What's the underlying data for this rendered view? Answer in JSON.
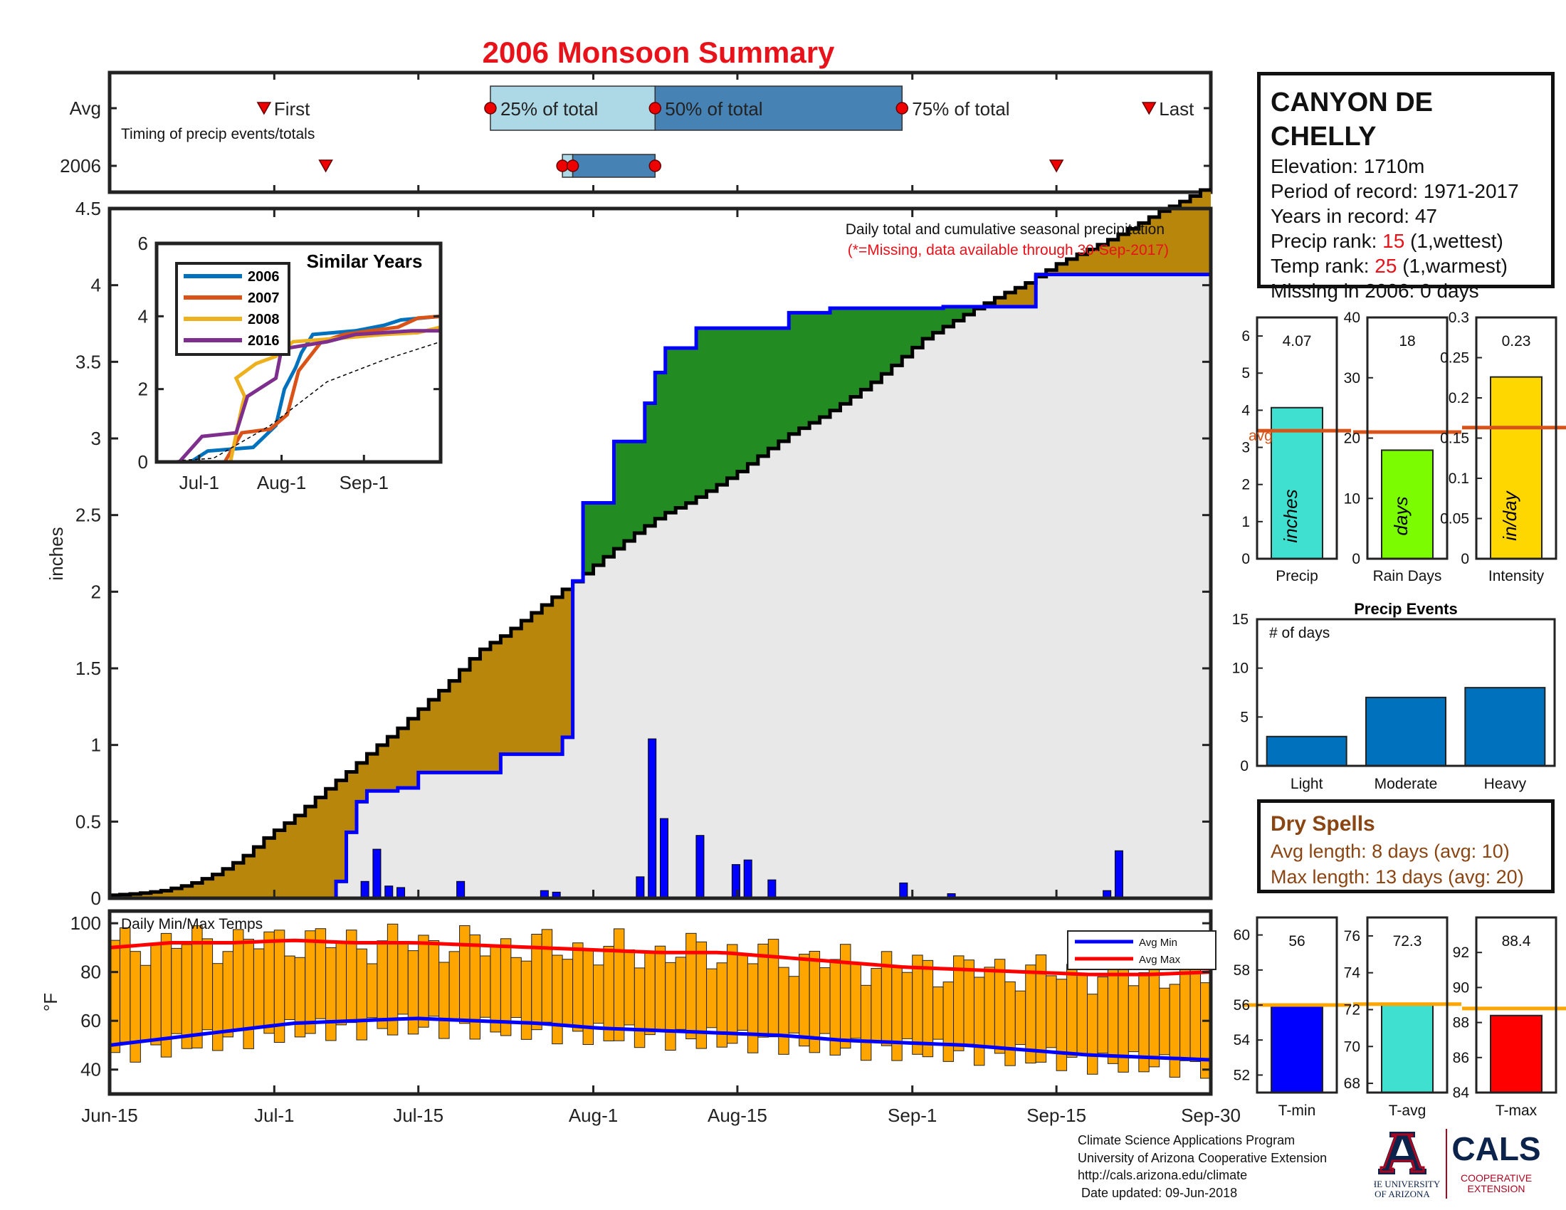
{
  "title": "2006 Monsoon Summary",
  "station": {
    "name": "CANYON DE CHELLY",
    "elevation_label": "Elevation: 1710m",
    "period_label": "Period of record: 1971-2017",
    "years_label": "Years in record: 47",
    "precip_rank_prefix": "Precip rank: ",
    "precip_rank": "15",
    "precip_rank_suffix": " (1,wettest)",
    "temp_rank_prefix": "Temp rank: ",
    "temp_rank": "25",
    "temp_rank_suffix": " (1,warmest)",
    "missing_label": "Missing in 2006: 0 days"
  },
  "dry_spells": {
    "heading": "Dry Spells",
    "avg_line": "Avg length: 8 days (avg: 10)",
    "max_line": "Max length: 13 days (avg: 20)"
  },
  "credit": {
    "line1": "Climate Science Applications Program",
    "line2": "University of Arizona Cooperative Extension",
    "line3": "http://cals.arizona.edu/climate",
    "line4": " Date updated: 09-Jun-2018"
  },
  "logos": {
    "ua_line1": "THE UNIVERSITY",
    "ua_line2": "OF ARIZONA",
    "cals": "CALS",
    "cals_line1": "COOPERATIVE",
    "cals_line2": "EXTENSION",
    "ua_color": "#0c234b",
    "red_color": "#ab0520"
  },
  "colors": {
    "title": "#e8121a",
    "green": "#228b22",
    "brown": "#b8860b",
    "grey_fill": "#e8e8e8",
    "blue": "#0000ff",
    "orange": "#ffa500",
    "red": "#ff0000"
  },
  "chart_data": [
    {
      "id": "timing",
      "type": "timeline",
      "rows": [
        "Avg",
        "2006"
      ],
      "note": "Timing of precip events/totals",
      "labels": {
        "first": "First",
        "p25": "25% of total",
        "p50": "50% of total",
        "p75": "75% of total",
        "last": "Last"
      },
      "avg": {
        "first": "2006-06-30",
        "p25": "2006-07-22",
        "p50": "2006-08-07",
        "p75": "2006-08-31",
        "last": "2006-09-24"
      },
      "y2006": {
        "first": "2006-07-06",
        "p25": "2006-07-29",
        "p50": "2006-07-30",
        "p75": "2006-08-07",
        "last": "2006-09-15"
      }
    },
    {
      "id": "cumulative",
      "type": "area",
      "title": "Daily total and cumulative seasonal precipitation",
      "subtitle": "(*=Missing, data available through 30-Sep-2017)",
      "ylabel": "inches",
      "ylim": [
        0,
        4.5
      ],
      "yticks": [
        0,
        0.5,
        1,
        1.5,
        2,
        2.5,
        3,
        3.5,
        4,
        4.5
      ],
      "xlim": [
        "2006-06-15",
        "2006-09-30"
      ],
      "xticks": [
        {
          "date": "2006-06-15",
          "label": "Jun-15"
        },
        {
          "date": "2006-07-01",
          "label": "Jul-1"
        },
        {
          "date": "2006-07-15",
          "label": "Jul-15"
        },
        {
          "date": "2006-08-01",
          "label": "Aug-1"
        },
        {
          "date": "2006-08-15",
          "label": "Aug-15"
        },
        {
          "date": "2006-09-01",
          "label": "Sep-1"
        },
        {
          "date": "2006-09-15",
          "label": "Sep-15"
        },
        {
          "date": "2006-09-30",
          "label": "Sep-30"
        }
      ],
      "avg_cumulative": [
        [
          0,
          0.02
        ],
        [
          5,
          0.03
        ],
        [
          10,
          0.05
        ],
        [
          15,
          0.09
        ],
        [
          20,
          0.16
        ],
        [
          24,
          0.24
        ],
        [
          26,
          0.29
        ],
        [
          30,
          0.41
        ],
        [
          35,
          0.53
        ],
        [
          40,
          0.68
        ],
        [
          45,
          0.82
        ],
        [
          50,
          0.97
        ],
        [
          55,
          1.11
        ],
        [
          60,
          1.27
        ],
        [
          64,
          1.39
        ],
        [
          67,
          1.5
        ],
        [
          70,
          1.61
        ],
        [
          75,
          1.72
        ],
        [
          80,
          1.85
        ],
        [
          85,
          1.98
        ],
        [
          90,
          2.11
        ],
        [
          95,
          2.25
        ],
        [
          100,
          2.38
        ],
        [
          105,
          2.5
        ],
        [
          110,
          2.58
        ],
        [
          115,
          2.68
        ],
        [
          120,
          2.79
        ],
        [
          125,
          2.92
        ],
        [
          130,
          3.04
        ],
        [
          135,
          3.13
        ],
        [
          140,
          3.24
        ],
        [
          145,
          3.36
        ],
        [
          150,
          3.5
        ],
        [
          155,
          3.65
        ],
        [
          160,
          3.75
        ],
        [
          165,
          3.85
        ],
        [
          170,
          3.94
        ],
        [
          175,
          4.02
        ],
        [
          180,
          4.13
        ],
        [
          185,
          4.21
        ],
        [
          190,
          4.29
        ],
        [
          195,
          4.38
        ],
        [
          200,
          4.48
        ],
        [
          205,
          4.56
        ],
        [
          210,
          4.66
        ]
      ],
      "cumulative_2006": [
        [
          0,
          0
        ],
        [
          21,
          0
        ],
        [
          22,
          0.11
        ],
        [
          23,
          0.43
        ],
        [
          24,
          0.63
        ],
        [
          25,
          0.7
        ],
        [
          28,
          0.72
        ],
        [
          30,
          0.82
        ],
        [
          37,
          0.82
        ],
        [
          38,
          0.94
        ],
        [
          40,
          0.94
        ],
        [
          44,
          1.05
        ],
        [
          45,
          2.07
        ],
        [
          46,
          2.58
        ],
        [
          49,
          2.98
        ],
        [
          52,
          3.23
        ],
        [
          53,
          3.43
        ],
        [
          54,
          3.59
        ],
        [
          57,
          3.72
        ],
        [
          66,
          3.82
        ],
        [
          70,
          3.85
        ],
        [
          81,
          3.86
        ],
        [
          90,
          4.07
        ],
        [
          92,
          4.07
        ]
      ],
      "daily_2006": [
        [
          21,
          0.11
        ],
        [
          22,
          0.32
        ],
        [
          23,
          0.08
        ],
        [
          24,
          0.07
        ],
        [
          29,
          0.11
        ],
        [
          36,
          0.05
        ],
        [
          37,
          0.04
        ],
        [
          44,
          0.14
        ],
        [
          45,
          1.04
        ],
        [
          46,
          0.52
        ],
        [
          49,
          0.41
        ],
        [
          52,
          0.22
        ],
        [
          53,
          0.25
        ],
        [
          55,
          0.12
        ],
        [
          66,
          0.1
        ],
        [
          70,
          0.03
        ],
        [
          83,
          0.05
        ],
        [
          84,
          0.31
        ]
      ]
    },
    {
      "id": "similar_years",
      "type": "line",
      "title": "Similar Years",
      "yticks": [
        0,
        2,
        4,
        6
      ],
      "xticks": [
        "Jul-1",
        "Aug-1",
        "Sep-1"
      ],
      "series": [
        {
          "name": "2006",
          "color": "#0072bd"
        },
        {
          "name": "2007",
          "color": "#d95319"
        },
        {
          "name": "2008",
          "color": "#edb120"
        },
        {
          "name": "2016",
          "color": "#7e2f8e"
        }
      ]
    },
    {
      "id": "temps",
      "type": "bar",
      "title": "Daily Min/Max Temps",
      "ylabel": "°F",
      "ylim": [
        30,
        105
      ],
      "yticks": [
        40,
        60,
        80,
        100
      ],
      "legend": [
        "Avg Min",
        "Avg Max"
      ],
      "avg_min": [
        [
          0,
          50
        ],
        [
          10,
          53
        ],
        [
          20,
          56
        ],
        [
          30,
          59
        ],
        [
          40,
          60
        ],
        [
          50,
          61
        ],
        [
          60,
          60
        ],
        [
          70,
          59
        ],
        [
          80,
          57
        ],
        [
          90,
          56
        ],
        [
          100,
          55
        ],
        [
          110,
          54
        ],
        [
          120,
          52
        ],
        [
          130,
          51
        ],
        [
          140,
          50
        ],
        [
          150,
          48
        ],
        [
          160,
          46
        ],
        [
          170,
          45
        ],
        [
          180,
          44
        ]
      ],
      "avg_max": [
        [
          0,
          90
        ],
        [
          10,
          92
        ],
        [
          20,
          92
        ],
        [
          30,
          93
        ],
        [
          40,
          92
        ],
        [
          50,
          92
        ],
        [
          60,
          91
        ],
        [
          70,
          90
        ],
        [
          80,
          89
        ],
        [
          90,
          88
        ],
        [
          100,
          88
        ],
        [
          110,
          86
        ],
        [
          120,
          84
        ],
        [
          130,
          82
        ],
        [
          140,
          81
        ],
        [
          150,
          80
        ],
        [
          160,
          79
        ],
        [
          170,
          79
        ],
        [
          180,
          80
        ]
      ]
    },
    {
      "id": "precip_summary",
      "type": "bar",
      "panels": [
        {
          "xlabel": "Precip",
          "value": 4.07,
          "value_label": "4.07",
          "avg": 3.45,
          "unit": "inches",
          "ylim": [
            0,
            6.5
          ],
          "yticks": [
            0,
            1,
            2,
            3,
            4,
            5,
            6
          ],
          "color": "#40e0d0",
          "avg_label": "avg"
        },
        {
          "xlabel": "Rain Days",
          "value": 18,
          "value_label": "18",
          "avg": 21,
          "unit": "days",
          "ylim": [
            0,
            40
          ],
          "yticks": [
            0,
            10,
            20,
            30,
            40
          ],
          "color": "#7cfc00"
        },
        {
          "xlabel": "Intensity",
          "value": 0.226,
          "value_label": "0.23",
          "avg": 0.163,
          "unit": "in/day",
          "ylim": [
            0,
            0.3
          ],
          "ytick_labels": [
            "0",
            "0.05",
            "0.1",
            "0.15",
            "0.2",
            "0.25",
            "0.3"
          ],
          "color": "#ffd700"
        }
      ]
    },
    {
      "id": "precip_events",
      "type": "bar",
      "title": "Precip Events",
      "ylabel": "# of days",
      "categories": [
        "Light",
        "Moderate",
        "Heavy"
      ],
      "values": [
        3,
        7,
        8
      ],
      "ylim": [
        0,
        15
      ],
      "yticks": [
        0,
        5,
        10,
        15
      ]
    },
    {
      "id": "temp_summary",
      "type": "bar",
      "panels": [
        {
          "xlabel": "T-min",
          "value": 56,
          "value_label": "56",
          "avg": 56,
          "ylim": [
            51,
            61
          ],
          "yticks": [
            52,
            54,
            56,
            58,
            60
          ],
          "color": "#0000ff"
        },
        {
          "xlabel": "T-avg",
          "value": 72.3,
          "value_label": "72.3",
          "avg": 72.3,
          "ylim": [
            67.5,
            77
          ],
          "yticks": [
            68,
            70,
            72,
            74,
            76
          ],
          "color": "#40e0d0"
        },
        {
          "xlabel": "T-max",
          "value": 88.4,
          "value_label": "88.4",
          "avg": 88.8,
          "ylim": [
            84,
            94
          ],
          "yticks": [
            84,
            86,
            88,
            90,
            92
          ],
          "color": "#ff0000"
        }
      ]
    }
  ]
}
